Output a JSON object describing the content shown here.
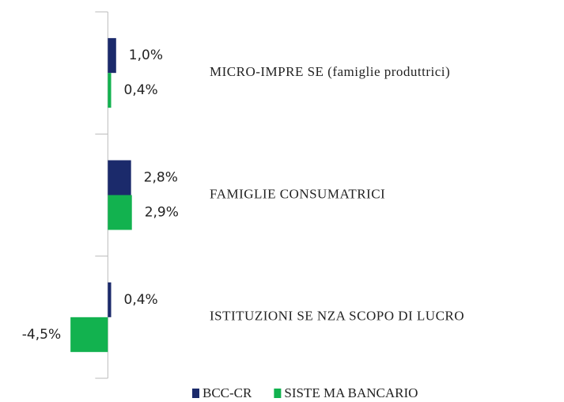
{
  "chart_data": {
    "type": "hbar",
    "categories": [
      "MICRO-IMPRE SE  (famiglie produttrici)",
      "FAMIGLIE CONSUMATRICI",
      "ISTITUZIONI SE NZA SCOPO DI LUCRO"
    ],
    "series": [
      {
        "name": "BCC-CR",
        "color": "#1b2a6b",
        "values": [
          1.0,
          2.8,
          0.4
        ],
        "value_labels": [
          "1,0%",
          "2,8%",
          "0,4%"
        ]
      },
      {
        "name": "SISTE MA BANCARIO",
        "color": "#12b24f",
        "values": [
          0.4,
          2.9,
          -4.5
        ],
        "value_labels": [
          "0,4%",
          "2,9%",
          "-4,5%"
        ]
      }
    ],
    "xlim": [
      -13,
      55
    ],
    "legend": "bottom"
  }
}
